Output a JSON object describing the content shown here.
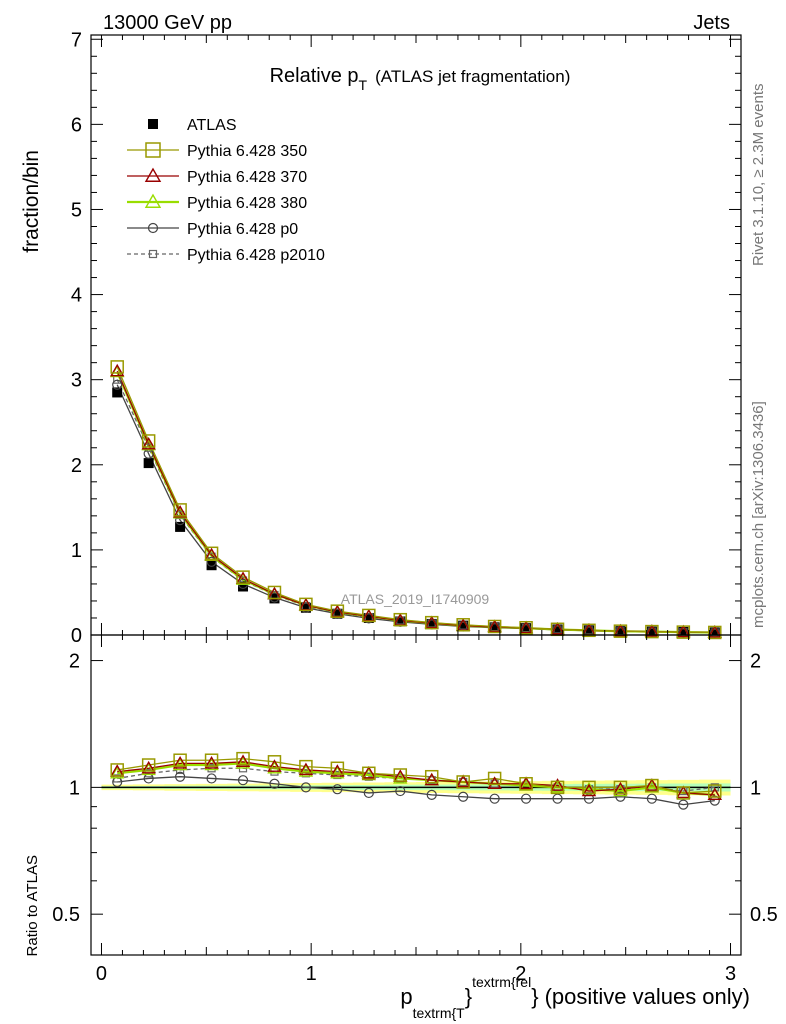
{
  "header": {
    "left": "13000 GeV pp",
    "right": "Jets"
  },
  "side_labels": {
    "rivet": "Rivet 3.1.10, ≥ 2.3M events",
    "mcplots": "mcplots.cern.ch [arXiv:1306.3436]"
  },
  "chart_data": {
    "type": "line",
    "title_main": "Relative p",
    "title_sub": "T",
    "title_rest": "(ATLAS jet fragmentation)",
    "watermark": "ATLAS_2019_I1740909",
    "ylabel_main": "fraction/bin",
    "ylabel_ratio": "Ratio to ATLAS",
    "xlabel": {
      "p": "p",
      "sub": "textrm{T",
      "brace1": "}",
      "sup": "textrm{rel",
      "brace2": "}",
      "rest": "(positive values only)"
    },
    "xlim": [
      -0.05,
      3.05
    ],
    "ylim_main": [
      0,
      7.05
    ],
    "ylim_ratio": [
      0.4,
      2.3
    ],
    "x_ticks": [
      "0",
      "1",
      "2",
      "3"
    ],
    "y_ticks_main": [
      "0",
      "1",
      "2",
      "3",
      "4",
      "5",
      "6",
      "7"
    ],
    "y_ticks_ratio": [
      "0.5",
      "1",
      "2"
    ],
    "x": [
      0.075,
      0.225,
      0.375,
      0.525,
      0.675,
      0.825,
      0.975,
      1.125,
      1.275,
      1.425,
      1.575,
      1.725,
      1.875,
      2.025,
      2.175,
      2.325,
      2.475,
      2.625,
      2.775,
      2.925
    ],
    "data": {
      "name": "ATLAS",
      "values": [
        2.85,
        2.02,
        1.27,
        0.82,
        0.57,
        0.43,
        0.32,
        0.25,
        0.2,
        0.16,
        0.13,
        0.11,
        0.09,
        0.08,
        0.065,
        0.055,
        0.045,
        0.04,
        0.035,
        0.03
      ]
    },
    "series": [
      {
        "name": "Pythia 6.428 350",
        "color": "#999900",
        "marker": "square-open",
        "dashed": false,
        "values": [
          3.15,
          2.28,
          1.47,
          0.96,
          0.68,
          0.5,
          0.36,
          0.28,
          0.23,
          0.18,
          0.145,
          0.12,
          0.1,
          0.085,
          0.067,
          0.055,
          0.045,
          0.04,
          0.034,
          0.03
        ],
        "ratio": [
          1.1,
          1.13,
          1.16,
          1.16,
          1.17,
          1.15,
          1.12,
          1.11,
          1.08,
          1.07,
          1.06,
          1.03,
          1.05,
          1.02,
          1.0,
          1.0,
          1.0,
          1.01,
          0.97,
          0.98
        ]
      },
      {
        "name": "Pythia 6.428 370",
        "color": "#990000",
        "marker": "triangle-open",
        "dashed": false,
        "values": [
          3.1,
          2.24,
          1.44,
          0.94,
          0.66,
          0.48,
          0.35,
          0.27,
          0.22,
          0.17,
          0.14,
          0.11,
          0.095,
          0.082,
          0.066,
          0.054,
          0.045,
          0.04,
          0.034,
          0.03
        ],
        "ratio": [
          1.09,
          1.11,
          1.14,
          1.14,
          1.15,
          1.12,
          1.1,
          1.09,
          1.08,
          1.06,
          1.04,
          1.03,
          1.02,
          1.02,
          1.01,
          0.98,
          0.99,
          1.01,
          0.97,
          0.96
        ]
      },
      {
        "name": "Pythia 6.428 380",
        "color": "#99dd00",
        "marker": "triangle-open",
        "dashed": false,
        "values": [
          3.09,
          2.23,
          1.43,
          0.93,
          0.65,
          0.48,
          0.35,
          0.27,
          0.22,
          0.17,
          0.14,
          0.11,
          0.095,
          0.081,
          0.065,
          0.054,
          0.044,
          0.04,
          0.034,
          0.029
        ],
        "ratio": [
          1.08,
          1.1,
          1.13,
          1.13,
          1.14,
          1.11,
          1.09,
          1.08,
          1.07,
          1.05,
          1.04,
          1.03,
          1.02,
          1.01,
          1.0,
          0.99,
          0.98,
          1.0,
          0.97,
          0.96
        ]
      },
      {
        "name": "Pythia 6.428 p0",
        "color": "#444444",
        "marker": "circle-open",
        "dashed": false,
        "values": [
          2.94,
          2.13,
          1.35,
          0.86,
          0.6,
          0.44,
          0.32,
          0.25,
          0.195,
          0.155,
          0.125,
          0.1,
          0.085,
          0.075,
          0.06,
          0.05,
          0.042,
          0.037,
          0.031,
          0.027
        ],
        "ratio": [
          1.03,
          1.05,
          1.06,
          1.05,
          1.04,
          1.02,
          1.0,
          0.99,
          0.97,
          0.98,
          0.96,
          0.95,
          0.94,
          0.94,
          0.94,
          0.94,
          0.95,
          0.94,
          0.91,
          0.93
        ]
      },
      {
        "name": "Pythia 6.428 p2010",
        "color": "#666666",
        "marker": "square-small",
        "dashed": true,
        "values": [
          3.0,
          2.2,
          1.41,
          0.92,
          0.64,
          0.47,
          0.34,
          0.26,
          0.21,
          0.17,
          0.135,
          0.11,
          0.092,
          0.08,
          0.065,
          0.053,
          0.044,
          0.039,
          0.033,
          0.029
        ],
        "ratio": [
          1.05,
          1.08,
          1.1,
          1.11,
          1.11,
          1.09,
          1.08,
          1.07,
          1.06,
          1.05,
          1.04,
          1.03,
          1.02,
          1.01,
          1.0,
          0.99,
          0.99,
          1.0,
          0.98,
          1.0
        ]
      }
    ],
    "band_colors": {
      "outer": "#ffff66",
      "inner": "#99ffcc"
    }
  }
}
